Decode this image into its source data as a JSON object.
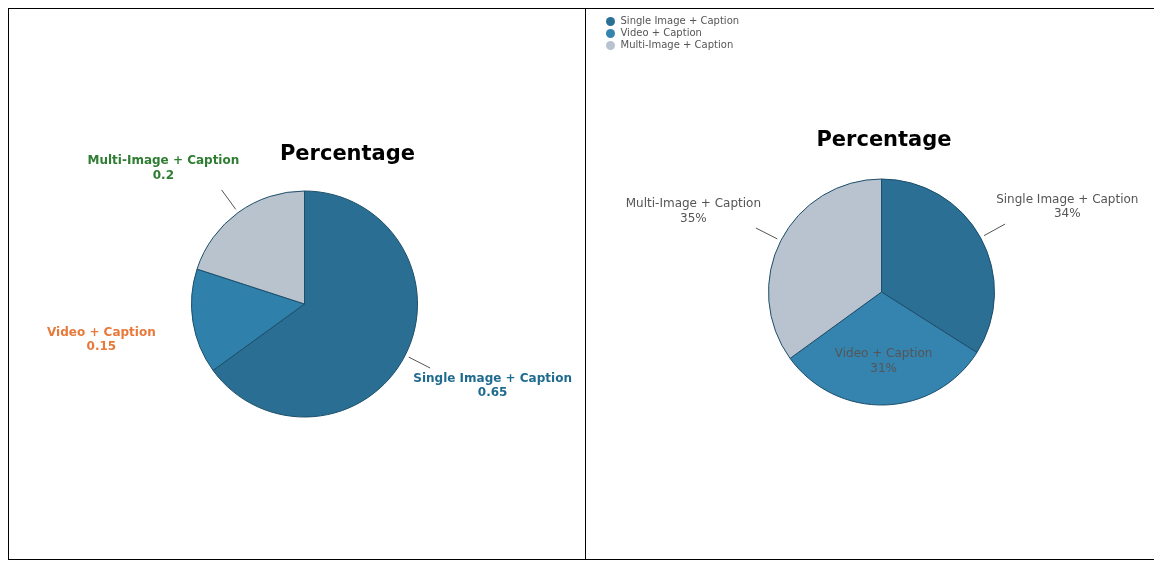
{
  "chart_data": [
    {
      "type": "pie",
      "title": "Percentage",
      "categories": [
        "Single Image + Caption",
        "Video + Caption",
        "Multi-Image + Caption"
      ],
      "values": [
        0.65,
        0.15,
        0.2
      ],
      "colors": [
        "#2a6f93",
        "#2f80aa",
        "#b9c3ce"
      ],
      "data_labels": true,
      "legend": false
    },
    {
      "type": "pie",
      "title": "Percentage",
      "categories": [
        "Single Image + Caption",
        "Video + Caption",
        "Multi-Image + Caption"
      ],
      "values": [
        34,
        31,
        35
      ],
      "value_labels": [
        "34%",
        "31%",
        "35%"
      ],
      "colors": [
        "#2b6f95",
        "#3584b0",
        "#b8c3cf"
      ],
      "legend": "top left"
    }
  ]
}
